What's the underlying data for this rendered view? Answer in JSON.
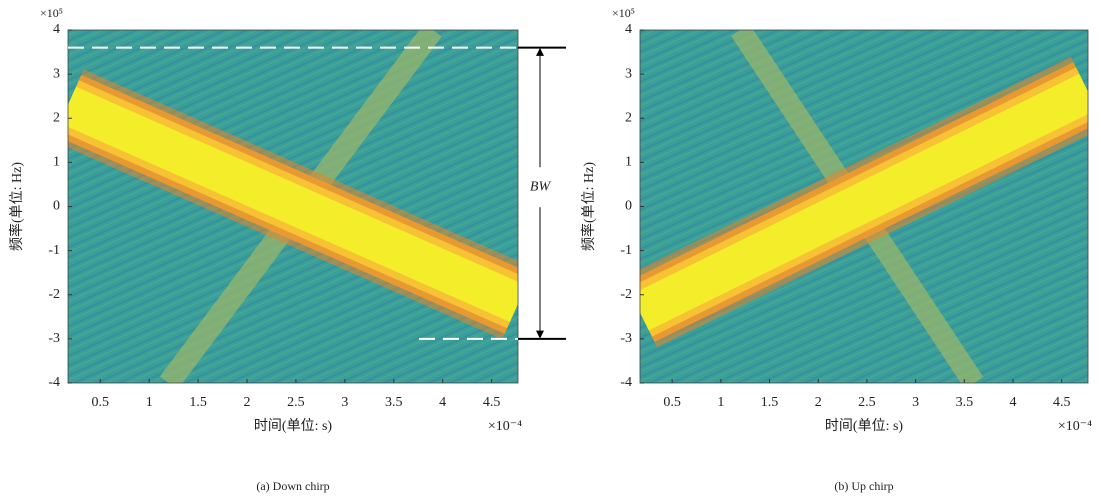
{
  "chart_data": [
    {
      "type": "spectrogram",
      "caption": "(a) Down chirp",
      "xlabel": "时间(单位: s)",
      "ylabel": "频率(单位: Hz)",
      "x_multiplier": "×10⁻⁴",
      "y_multiplier": "×10⁵",
      "xlim": [
        0.17,
        4.77
      ],
      "ylim": [
        -4,
        4
      ],
      "xticks": [
        0.5,
        1.0,
        1.5,
        2.0,
        2.5,
        3.0,
        3.5,
        4.0,
        4.5
      ],
      "yticks": [
        -4,
        -3,
        -2,
        -1,
        0,
        1,
        2,
        3,
        4
      ],
      "background": "#3a9f98",
      "chirp": {
        "x": [
          0.17,
          4.77
        ],
        "values": [
          2.3,
          -2.2
        ],
        "color": "#f4ee2a"
      },
      "alias": {
        "x": [
          1.2,
          3.9
        ],
        "values": [
          -4,
          4
        ],
        "color": "#9fb86a"
      },
      "annotation": {
        "text": "BW",
        "y": [
          3.6,
          -3
        ]
      }
    },
    {
      "type": "spectrogram",
      "caption": "(b) Up chirp",
      "xlabel": "时间(单位: s)",
      "ylabel": "频率(单位: Hz)",
      "x_multiplier": "×10⁻⁴",
      "y_multiplier": "×10⁵",
      "xlim": [
        0.17,
        4.77
      ],
      "ylim": [
        -4,
        4
      ],
      "xticks": [
        0.5,
        1.0,
        1.5,
        2.0,
        2.5,
        3.0,
        3.5,
        4.0,
        4.5
      ],
      "yticks": [
        -4,
        -3,
        -2,
        -1,
        0,
        1,
        2,
        3,
        4
      ],
      "background": "#3a9f98",
      "chirp": {
        "x": [
          0.17,
          4.77
        ],
        "values": [
          -2.4,
          2.6
        ],
        "color": "#f4ee2a"
      },
      "alias": {
        "x": [
          1.2,
          3.6
        ],
        "values": [
          4,
          -4
        ],
        "color": "#9fb86a"
      }
    }
  ]
}
